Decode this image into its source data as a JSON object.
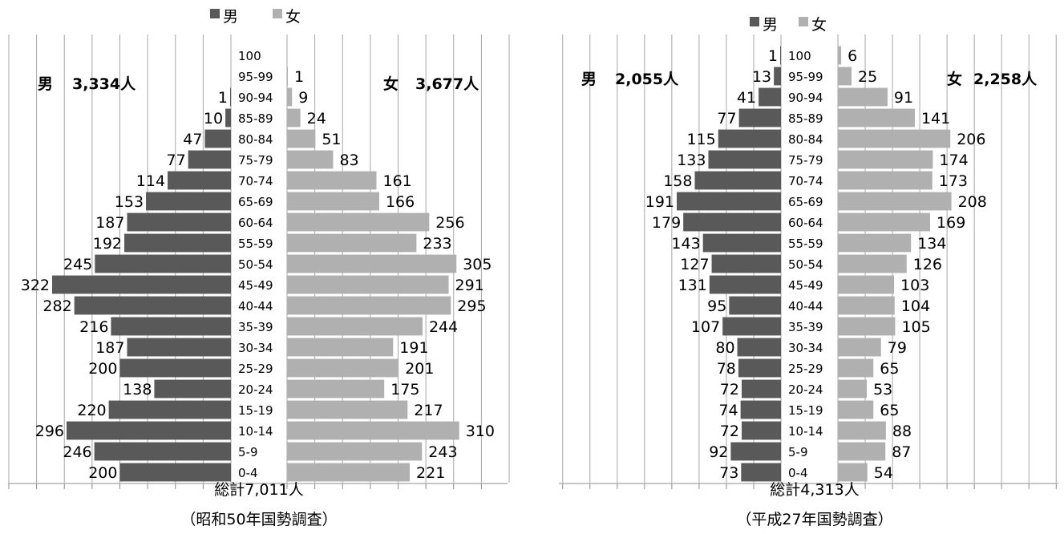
{
  "colors": {
    "male": "#595959",
    "female": "#b0b0b0",
    "grid": "#a6a6a6",
    "axis": "#8c8c8c"
  },
  "age_groups": [
    "100",
    "95-99",
    "90-94",
    "85-89",
    "80-84",
    "75-79",
    "70-74",
    "65-69",
    "60-64",
    "55-59",
    "50-54",
    "45-49",
    "40-44",
    "35-39",
    "30-34",
    "25-29",
    "20-24",
    "15-19",
    "10-14",
    "5-9",
    "0-4"
  ],
  "chart_data": [
    {
      "type": "bar",
      "orientation": "population-pyramid",
      "legend": {
        "placement": "top",
        "items": [
          "男",
          "女"
        ]
      },
      "male_total_label": "男",
      "male_total_value": "3,334人",
      "female_total_label": "女",
      "female_total_value": "3,677人",
      "total_text": "総計7,011人",
      "survey_text": "（昭和50年国勢調査）",
      "categories": [
        "100",
        "95-99",
        "90-94",
        "85-89",
        "80-84",
        "75-79",
        "70-74",
        "65-69",
        "60-64",
        "55-59",
        "50-54",
        "45-49",
        "40-44",
        "35-39",
        "30-34",
        "25-29",
        "20-24",
        "15-19",
        "10-14",
        "5-9",
        "0-4"
      ],
      "series": [
        {
          "name": "男",
          "values": [
            null,
            null,
            1,
            10,
            47,
            77,
            114,
            153,
            187,
            192,
            245,
            322,
            282,
            216,
            187,
            200,
            138,
            220,
            296,
            246,
            200
          ]
        },
        {
          "name": "女",
          "values": [
            null,
            1,
            9,
            24,
            51,
            83,
            161,
            166,
            256,
            233,
            305,
            291,
            295,
            244,
            191,
            201,
            175,
            217,
            310,
            243,
            221
          ]
        }
      ],
      "xlim": [
        0,
        350
      ],
      "grid": true
    },
    {
      "type": "bar",
      "orientation": "population-pyramid",
      "legend": {
        "placement": "top",
        "items": [
          "男",
          "女"
        ]
      },
      "male_total_label": "男",
      "male_total_value": "2,055人",
      "female_total_label": "女",
      "female_total_value": "2,258人",
      "total_text": "総計4,313人",
      "survey_text": "（平成27年国勢調査）",
      "categories": [
        "100",
        "95-99",
        "90-94",
        "85-89",
        "80-84",
        "75-79",
        "70-74",
        "65-69",
        "60-64",
        "55-59",
        "50-54",
        "45-49",
        "40-44",
        "35-39",
        "30-34",
        "25-29",
        "20-24",
        "15-19",
        "10-14",
        "5-9",
        "0-4"
      ],
      "series": [
        {
          "name": "男",
          "values": [
            1,
            13,
            41,
            77,
            115,
            133,
            158,
            191,
            179,
            143,
            127,
            131,
            95,
            107,
            80,
            78,
            72,
            74,
            72,
            92,
            73
          ]
        },
        {
          "name": "女",
          "values": [
            6,
            25,
            91,
            141,
            206,
            174,
            173,
            208,
            169,
            134,
            126,
            103,
            104,
            105,
            79,
            65,
            53,
            65,
            88,
            87,
            54
          ]
        }
      ],
      "xlim": [
        0,
        250
      ],
      "grid": true
    }
  ]
}
